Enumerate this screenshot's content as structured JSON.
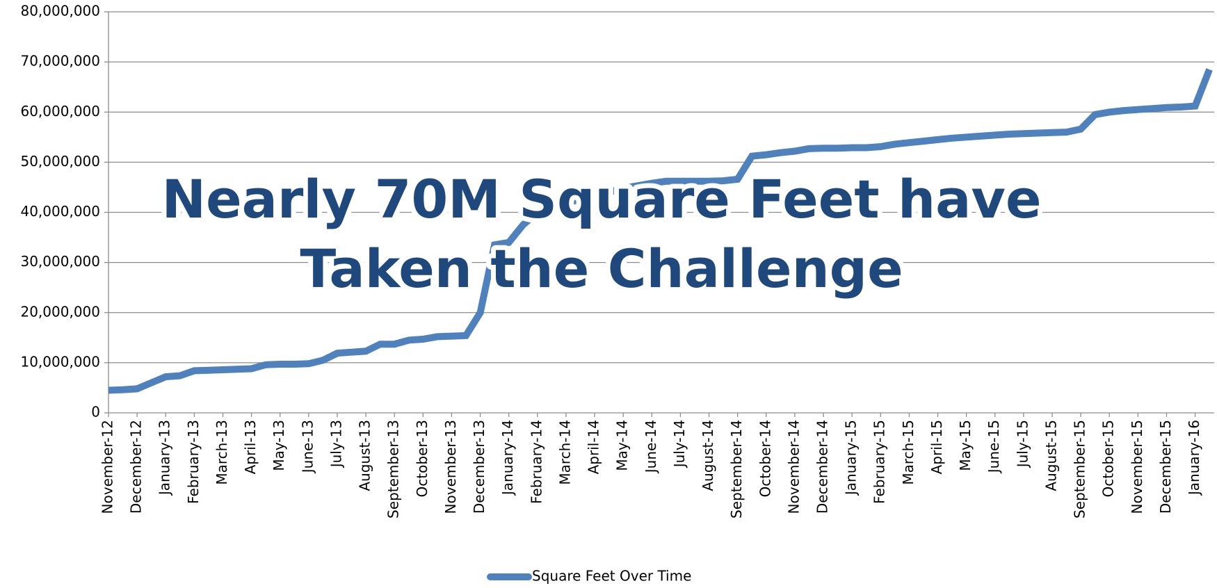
{
  "chart_data": {
    "type": "line",
    "annotation": [
      "Nearly 70M Square Feet have",
      "Taken the Challenge"
    ],
    "categories": [
      "November-12",
      null,
      "December-12",
      null,
      "January-13",
      null,
      "February-13",
      null,
      "March-13",
      null,
      "April-13",
      null,
      "May-13",
      null,
      "June-13",
      null,
      "July-13",
      null,
      "August-13",
      null,
      "September-13",
      null,
      "October-13",
      null,
      "November-13",
      null,
      "December-13",
      null,
      "January-14",
      null,
      "February-14",
      null,
      "March-14",
      null,
      "April-14",
      null,
      "May-14",
      null,
      "June-14",
      null,
      "July-14",
      null,
      "August-14",
      null,
      "September-14",
      null,
      "October-14",
      null,
      "November-14",
      null,
      "December-14",
      null,
      "January-15",
      null,
      "February-15",
      null,
      "March-15",
      null,
      "April-15",
      null,
      "May-15",
      null,
      "June-15",
      null,
      "July-15",
      null,
      "August-15",
      null,
      "September-15",
      null,
      "October-15",
      null,
      "November-15",
      null,
      "December-15",
      null,
      "January-16",
      null
    ],
    "series": [
      {
        "name": "Square Feet Over Time",
        "color": "#4f81bd",
        "values": [
          4500000,
          4600000,
          4800000,
          6000000,
          7200000,
          7400000,
          8400000,
          8500000,
          8600000,
          8700000,
          8800000,
          9600000,
          9700000,
          9700000,
          9800000,
          10500000,
          11900000,
          12100000,
          12300000,
          13700000,
          13700000,
          14500000,
          14700000,
          15200000,
          15300000,
          15400000,
          20000000,
          33500000,
          34000000,
          37500000,
          40000000,
          41000000,
          42000000,
          42500000,
          43500000,
          44000000,
          44800000,
          45300000,
          45800000,
          46200000,
          46200000,
          46200000,
          46200000,
          46300000,
          46600000,
          51200000,
          51500000,
          51900000,
          52200000,
          52700000,
          52800000,
          52800000,
          52900000,
          52900000,
          53100000,
          53600000,
          53900000,
          54200000,
          54500000,
          54800000,
          55000000,
          55200000,
          55400000,
          55600000,
          55700000,
          55800000,
          55900000,
          56000000,
          56600000,
          59500000,
          60000000,
          60300000,
          60500000,
          60700000,
          60900000,
          61000000,
          61200000,
          68500000
        ]
      }
    ],
    "ylim": [
      0,
      80000000
    ],
    "yticks": [
      0,
      {
        "value": 10000000,
        "label": "10,000,000"
      },
      {
        "value": 20000000,
        "label": "20,000,000"
      },
      {
        "value": 30000000,
        "label": "30,000,000"
      },
      {
        "value": 40000000,
        "label": "40,000,000"
      },
      {
        "value": 50000000,
        "label": "50,000,000"
      },
      {
        "value": 60000000,
        "label": "60,000,000"
      },
      {
        "value": 70000000,
        "label": "70,000,000"
      },
      {
        "value": 80000000,
        "label": "80,000,000"
      }
    ],
    "grid": true,
    "legend": "bottom"
  }
}
